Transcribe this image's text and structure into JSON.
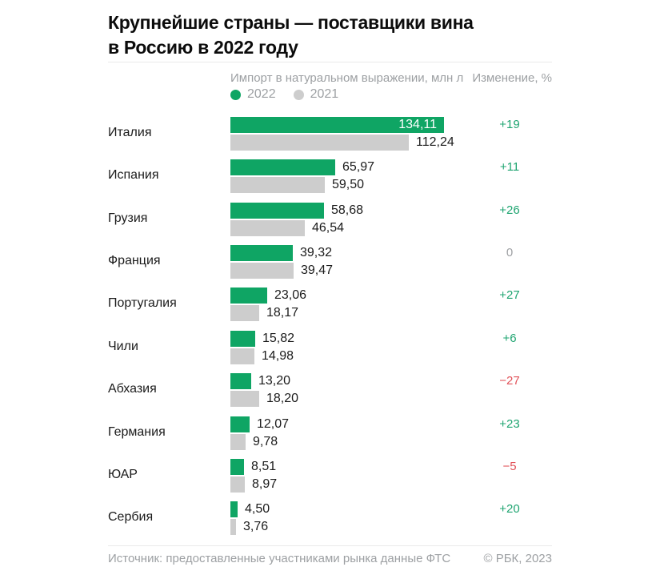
{
  "title": {
    "line1": "Крупнейшие страны — поставщики вина",
    "line2": "в Россию в 2022 году"
  },
  "header": {
    "metric_label": "Импорт в натуральном выражении, млн л",
    "change_label": "Изменение, %",
    "legend": [
      {
        "label": "2022",
        "color": "#0FA564"
      },
      {
        "label": "2021",
        "color": "#CDCDCD"
      }
    ]
  },
  "chart_data": {
    "type": "bar",
    "orientation": "horizontal",
    "unit": "млн л",
    "title": "Крупнейшие страны — поставщики вина в Россию в 2022 году",
    "subtitle": "Импорт в натуральном выражении, млн л",
    "categories": [
      "Италия",
      "Испания",
      "Грузия",
      "Франция",
      "Португалия",
      "Чили",
      "Абхазия",
      "Германия",
      "ЮАР",
      "Сербия"
    ],
    "series": [
      {
        "name": "2022",
        "values": [
          134.11,
          65.97,
          58.68,
          39.32,
          23.06,
          15.82,
          13.2,
          12.07,
          8.51,
          4.5
        ]
      },
      {
        "name": "2021",
        "values": [
          112.24,
          59.5,
          46.54,
          39.47,
          18.17,
          14.98,
          18.2,
          9.78,
          8.97,
          3.76
        ]
      }
    ],
    "change_percent": [
      19,
      11,
      26,
      0,
      27,
      6,
      -27,
      23,
      -5,
      20
    ],
    "rows": [
      {
        "country": "Италия",
        "v2022": "134,11",
        "v2021": "112,24",
        "change": "+19"
      },
      {
        "country": "Испания",
        "v2022": "65,97",
        "v2021": "59,50",
        "change": "+11"
      },
      {
        "country": "Грузия",
        "v2022": "58,68",
        "v2021": "46,54",
        "change": "+26"
      },
      {
        "country": "Франция",
        "v2022": "39,32",
        "v2021": "39,47",
        "change": "0"
      },
      {
        "country": "Португалия",
        "v2022": "23,06",
        "v2021": "18,17",
        "change": "+27"
      },
      {
        "country": "Чили",
        "v2022": "15,82",
        "v2021": "14,98",
        "change": "+6"
      },
      {
        "country": "Абхазия",
        "v2022": "13,20",
        "v2021": "18,20",
        "change": "−27"
      },
      {
        "country": "Германия",
        "v2022": "12,07",
        "v2021": "9,78",
        "change": "+23"
      },
      {
        "country": "ЮАР",
        "v2022": "8,51",
        "v2021": "8,97",
        "change": "−5"
      },
      {
        "country": "Сербия",
        "v2022": "4,50",
        "v2021": "3,76",
        "change": "+20"
      }
    ]
  },
  "footer": {
    "source": "Источник: предоставленные участниками рынка данные ФТС",
    "copyright": "© РБК, 2023"
  },
  "colors": {
    "bar_2022": "#0FA564",
    "bar_2021": "#CDCDCD",
    "positive": "#1EA470",
    "negative": "#E15158",
    "zero": "#9EA0A3",
    "text": "#1B1B1B",
    "muted": "#9DA0A3",
    "divider": "#E9E9E9",
    "title": "#0C0C0C",
    "inside_label": "#FFFFFF"
  }
}
